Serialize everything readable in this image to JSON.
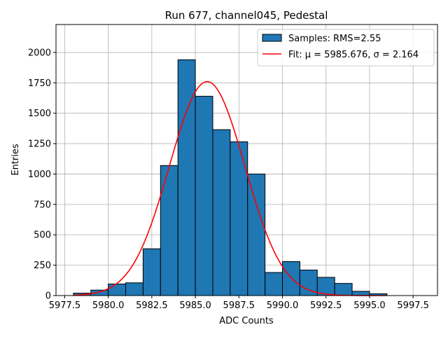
{
  "chart_data": {
    "type": "bar",
    "title": "Run 677, channel045, Pedestal",
    "xlabel": "ADC Counts",
    "ylabel": "Entries",
    "xlim": [
      5977.0,
      5998.9
    ],
    "ylim": [
      0,
      2230
    ],
    "grid": true,
    "legend_position": "top-right",
    "xticks": [
      5977.5,
      5980.0,
      5982.5,
      5985.0,
      5987.5,
      5990.0,
      5992.5,
      5995.0,
      5997.5
    ],
    "xtick_labels": [
      "5977.5",
      "5980.0",
      "5982.5",
      "5985.0",
      "5987.5",
      "5990.0",
      "5992.5",
      "5995.0",
      "5997.5"
    ],
    "yticks": [
      0,
      250,
      500,
      750,
      1000,
      1250,
      1500,
      1750,
      2000
    ],
    "ytick_labels": [
      "0",
      "250",
      "500",
      "750",
      "1000",
      "1250",
      "1500",
      "1750",
      "2000"
    ],
    "bin_edges": [
      5978,
      5979,
      5980,
      5981,
      5982,
      5983,
      5984,
      5985,
      5986,
      5987,
      5988,
      5989,
      5990,
      5991,
      5992,
      5993,
      5994,
      5995,
      5996
    ],
    "series": [
      {
        "name": "Samples: RMS=2.55",
        "kind": "histogram",
        "color": "#1f77b4",
        "edge_color": "#000000",
        "values": [
          20,
          45,
          95,
          105,
          385,
          1070,
          1940,
          1640,
          1365,
          1265,
          1000,
          190,
          280,
          210,
          150,
          100,
          35,
          15
        ]
      },
      {
        "name": "Fit: μ = 5985.676, σ = 2.164",
        "kind": "gaussian",
        "color": "#ff0000",
        "mu": 5985.676,
        "sigma": 2.164,
        "amplitude": 1760,
        "x_range": [
          5978.0,
          5996.0
        ]
      }
    ]
  }
}
